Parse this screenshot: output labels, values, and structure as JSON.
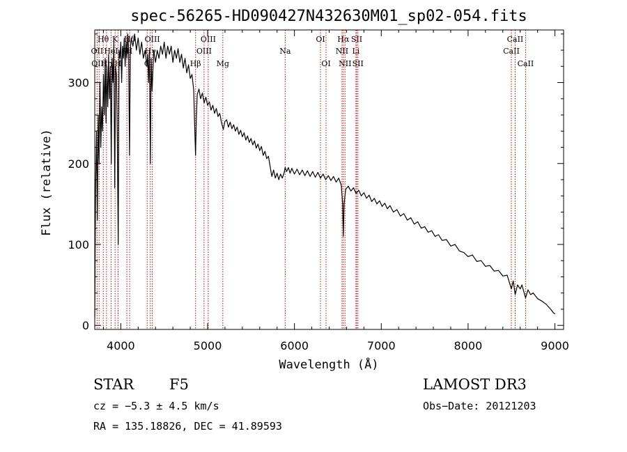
{
  "chart_data": {
    "type": "line",
    "title": "spec-56265-HD090427N432630M01_sp02-054.fits",
    "xlabel": "Wavelength (Å)",
    "ylabel": "Flux (relative)",
    "xlim": [
      3700,
      9100
    ],
    "ylim": [
      -5,
      365
    ],
    "x_ticks": [
      4000,
      5000,
      6000,
      7000,
      8000,
      9000
    ],
    "y_ticks": [
      0,
      100,
      200,
      300
    ],
    "series": [
      {
        "name": "flux",
        "color": "#000000",
        "points": [
          [
            3700,
            10
          ],
          [
            3710,
            170
          ],
          [
            3720,
            240
          ],
          [
            3730,
            130
          ],
          [
            3740,
            260
          ],
          [
            3750,
            200
          ],
          [
            3760,
            300
          ],
          [
            3770,
            220
          ],
          [
            3780,
            270
          ],
          [
            3790,
            240
          ],
          [
            3800,
            310
          ],
          [
            3810,
            260
          ],
          [
            3820,
            330
          ],
          [
            3830,
            250
          ],
          [
            3840,
            320
          ],
          [
            3850,
            270
          ],
          [
            3860,
            335
          ],
          [
            3870,
            280
          ],
          [
            3880,
            320
          ],
          [
            3890,
            200
          ],
          [
            3900,
            330
          ],
          [
            3910,
            300
          ],
          [
            3920,
            350
          ],
          [
            3930,
            170
          ],
          [
            3940,
            320
          ],
          [
            3950,
            310
          ],
          [
            3960,
            230
          ],
          [
            3970,
            100
          ],
          [
            3980,
            340
          ],
          [
            3990,
            330
          ],
          [
            4000,
            350
          ],
          [
            4010,
            300
          ],
          [
            4020,
            345
          ],
          [
            4030,
            330
          ],
          [
            4040,
            355
          ],
          [
            4050,
            320
          ],
          [
            4060,
            350
          ],
          [
            4070,
            330
          ],
          [
            4080,
            360
          ],
          [
            4090,
            340
          ],
          [
            4100,
            210
          ],
          [
            4110,
            340
          ],
          [
            4120,
            355
          ],
          [
            4140,
            345
          ],
          [
            4160,
            360
          ],
          [
            4180,
            340
          ],
          [
            4200,
            355
          ],
          [
            4220,
            335
          ],
          [
            4240,
            350
          ],
          [
            4260,
            330
          ],
          [
            4280,
            340
          ],
          [
            4300,
            320
          ],
          [
            4310,
            335
          ],
          [
            4320,
            300
          ],
          [
            4330,
            340
          ],
          [
            4340,
            200
          ],
          [
            4350,
            330
          ],
          [
            4360,
            290
          ],
          [
            4380,
            340
          ],
          [
            4400,
            325
          ],
          [
            4420,
            340
          ],
          [
            4440,
            330
          ],
          [
            4460,
            345
          ],
          [
            4480,
            335
          ],
          [
            4500,
            350
          ],
          [
            4520,
            330
          ],
          [
            4540,
            345
          ],
          [
            4560,
            335
          ],
          [
            4580,
            345
          ],
          [
            4600,
            325
          ],
          [
            4620,
            340
          ],
          [
            4640,
            330
          ],
          [
            4660,
            342
          ],
          [
            4680,
            325
          ],
          [
            4700,
            335
          ],
          [
            4720,
            318
          ],
          [
            4740,
            330
          ],
          [
            4760,
            312
          ],
          [
            4780,
            322
          ],
          [
            4800,
            305
          ],
          [
            4820,
            310
          ],
          [
            4840,
            290
          ],
          [
            4850,
            250
          ],
          [
            4861,
            210
          ],
          [
            4870,
            255
          ],
          [
            4880,
            285
          ],
          [
            4900,
            292
          ],
          [
            4920,
            280
          ],
          [
            4940,
            287
          ],
          [
            4960,
            275
          ],
          [
            4980,
            282
          ],
          [
            5000,
            272
          ],
          [
            5020,
            276
          ],
          [
            5040,
            266
          ],
          [
            5060,
            272
          ],
          [
            5080,
            262
          ],
          [
            5100,
            268
          ],
          [
            5120,
            258
          ],
          [
            5140,
            262
          ],
          [
            5160,
            250
          ],
          [
            5180,
            242
          ],
          [
            5200,
            252
          ],
          [
            5220,
            254
          ],
          [
            5240,
            245
          ],
          [
            5260,
            251
          ],
          [
            5280,
            243
          ],
          [
            5300,
            248
          ],
          [
            5320,
            240
          ],
          [
            5340,
            245
          ],
          [
            5360,
            236
          ],
          [
            5380,
            241
          ],
          [
            5400,
            233
          ],
          [
            5420,
            238
          ],
          [
            5440,
            229
          ],
          [
            5460,
            234
          ],
          [
            5480,
            226
          ],
          [
            5500,
            231
          ],
          [
            5520,
            223
          ],
          [
            5540,
            228
          ],
          [
            5560,
            219
          ],
          [
            5580,
            224
          ],
          [
            5600,
            216
          ],
          [
            5620,
            221
          ],
          [
            5640,
            210
          ],
          [
            5660,
            215
          ],
          [
            5680,
            206
          ],
          [
            5700,
            209
          ],
          [
            5720,
            196
          ],
          [
            5740,
            184
          ],
          [
            5760,
            192
          ],
          [
            5780,
            182
          ],
          [
            5800,
            188
          ],
          [
            5820,
            180
          ],
          [
            5840,
            187
          ],
          [
            5860,
            182
          ],
          [
            5880,
            188
          ],
          [
            5893,
            195
          ],
          [
            5910,
            190
          ],
          [
            5930,
            195
          ],
          [
            5950,
            188
          ],
          [
            5970,
            194
          ],
          [
            6000,
            187
          ],
          [
            6030,
            193
          ],
          [
            6060,
            186
          ],
          [
            6090,
            192
          ],
          [
            6120,
            185
          ],
          [
            6150,
            191
          ],
          [
            6180,
            184
          ],
          [
            6210,
            190
          ],
          [
            6240,
            183
          ],
          [
            6270,
            189
          ],
          [
            6300,
            182
          ],
          [
            6330,
            187
          ],
          [
            6360,
            180
          ],
          [
            6390,
            185
          ],
          [
            6420,
            179
          ],
          [
            6450,
            184
          ],
          [
            6480,
            177
          ],
          [
            6510,
            182
          ],
          [
            6540,
            173
          ],
          [
            6555,
            150
          ],
          [
            6563,
            110
          ],
          [
            6572,
            150
          ],
          [
            6590,
            168
          ],
          [
            6620,
            172
          ],
          [
            6650,
            166
          ],
          [
            6680,
            170
          ],
          [
            6710,
            163
          ],
          [
            6740,
            167
          ],
          [
            6770,
            160
          ],
          [
            6800,
            164
          ],
          [
            6830,
            157
          ],
          [
            6860,
            161
          ],
          [
            6890,
            153
          ],
          [
            6920,
            157
          ],
          [
            6950,
            150
          ],
          [
            6980,
            154
          ],
          [
            7010,
            147
          ],
          [
            7040,
            151
          ],
          [
            7070,
            144
          ],
          [
            7100,
            148
          ],
          [
            7140,
            140
          ],
          [
            7180,
            143
          ],
          [
            7220,
            135
          ],
          [
            7260,
            138
          ],
          [
            7300,
            130
          ],
          [
            7340,
            133
          ],
          [
            7380,
            125
          ],
          [
            7420,
            128
          ],
          [
            7460,
            120
          ],
          [
            7500,
            122
          ],
          [
            7540,
            115
          ],
          [
            7580,
            117
          ],
          [
            7620,
            110
          ],
          [
            7660,
            112
          ],
          [
            7700,
            105
          ],
          [
            7750,
            106
          ],
          [
            7800,
            98
          ],
          [
            7850,
            100
          ],
          [
            7900,
            92
          ],
          [
            7950,
            90
          ],
          [
            8000,
            85
          ],
          [
            8050,
            87
          ],
          [
            8100,
            79
          ],
          [
            8150,
            80
          ],
          [
            8200,
            73
          ],
          [
            8250,
            74
          ],
          [
            8300,
            67
          ],
          [
            8350,
            68
          ],
          [
            8400,
            61
          ],
          [
            8450,
            62
          ],
          [
            8498,
            45
          ],
          [
            8520,
            55
          ],
          [
            8542,
            38
          ],
          [
            8570,
            50
          ],
          [
            8600,
            45
          ],
          [
            8620,
            50
          ],
          [
            8662,
            34
          ],
          [
            8690,
            44
          ],
          [
            8720,
            38
          ],
          [
            8750,
            40
          ],
          [
            8800,
            33
          ],
          [
            8850,
            30
          ],
          [
            8900,
            26
          ],
          [
            8950,
            20
          ],
          [
            8980,
            16
          ],
          [
            9000,
            14
          ]
        ]
      }
    ],
    "line_markers": [
      {
        "label": "Hθ",
        "wavelength": 3798,
        "row": 1
      },
      {
        "label": "OII",
        "wavelength": 3727,
        "row": 2
      },
      {
        "label": "OIII",
        "wavelength": 3750,
        "row": 3
      },
      {
        "label": "Hη",
        "wavelength": 3835,
        "row": 3
      },
      {
        "label": "HeI",
        "wavelength": 3889,
        "row": 2
      },
      {
        "label": "K",
        "wavelength": 3934,
        "row": 1
      },
      {
        "label": "H",
        "wavelength": 3968,
        "row": 3
      },
      {
        "label": "SII",
        "wavelength": 4070,
        "row": 2
      },
      {
        "label": "Hδ",
        "wavelength": 4102,
        "row": 1
      },
      {
        "label": "Hγ",
        "wavelength": 4340,
        "row": 2
      },
      {
        "label": "OIII",
        "wavelength": 4363,
        "row": 1
      },
      {
        "label": "G",
        "wavelength": 4304,
        "row": 3
      },
      {
        "label": "Hβ",
        "wavelength": 4861,
        "row": 3
      },
      {
        "label": "OIII",
        "wavelength": 4959,
        "row": 2
      },
      {
        "label": "OIII",
        "wavelength": 5007,
        "row": 1
      },
      {
        "label": "Mg",
        "wavelength": 5175,
        "row": 3
      },
      {
        "label": "Na",
        "wavelength": 5893,
        "row": 2
      },
      {
        "label": "OI",
        "wavelength": 6300,
        "row": 1
      },
      {
        "label": "OI",
        "wavelength": 6364,
        "row": 3
      },
      {
        "label": "NII",
        "wavelength": 6548,
        "row": 2
      },
      {
        "label": "Hα",
        "wavelength": 6563,
        "row": 1
      },
      {
        "label": "NII",
        "wavelength": 6583,
        "row": 3
      },
      {
        "label": "Li",
        "wavelength": 6708,
        "row": 2
      },
      {
        "label": "SII",
        "wavelength": 6717,
        "row": 1
      },
      {
        "label": "SII",
        "wavelength": 6731,
        "row": 3
      },
      {
        "label": "CaII",
        "wavelength": 8498,
        "row": 2
      },
      {
        "label": "CaII",
        "wavelength": 8542,
        "row": 1
      },
      {
        "label": "CaII",
        "wavelength": 8662,
        "row": 3
      }
    ],
    "marker_color": "#cc0000"
  },
  "info": {
    "object_class": "STAR",
    "subclass": "F5",
    "survey": "LAMOST DR3",
    "cz": "cz = −5.3 ± 4.5 km/s",
    "obs_date": "Obs−Date: 20121203",
    "coords": "RA = 135.18826, DEC =  41.89593"
  }
}
